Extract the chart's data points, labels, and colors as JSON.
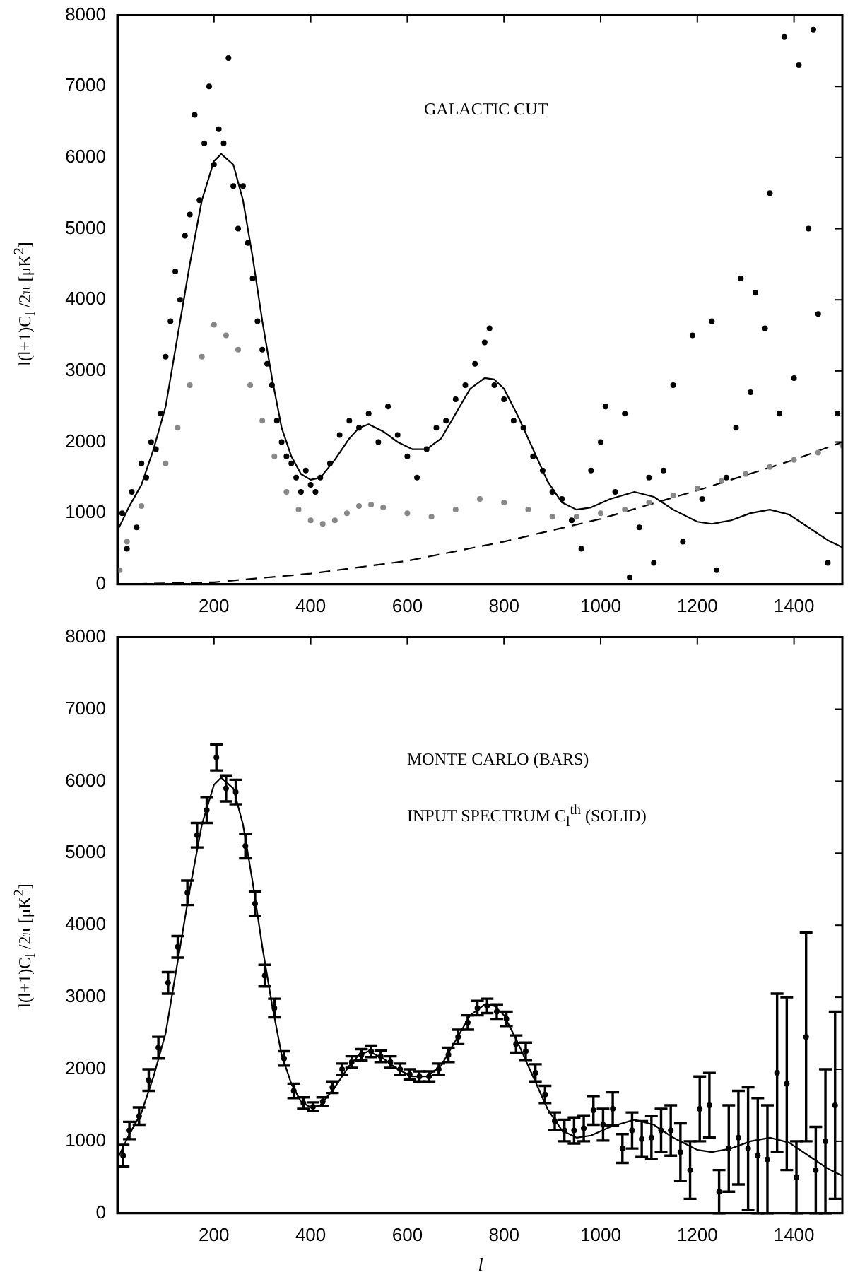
{
  "chart_data": [
    {
      "type": "scatter",
      "ylabel": "l(l+1)C$_{l}$ /2π [μK$^{2}$]",
      "annotations": [
        "GALACTIC CUT"
      ],
      "xlim": [
        0,
        1500
      ],
      "xticks": [
        200,
        400,
        600,
        800,
        1000,
        1200,
        1400
      ],
      "ylim": [
        0,
        8000
      ],
      "yticks": [
        0,
        1000,
        2000,
        3000,
        4000,
        5000,
        6000,
        7000,
        8000
      ],
      "grid": false,
      "legend": false,
      "series": [
        {
          "type": "scatter",
          "color": "#000000",
          "x": [
            10,
            20,
            30,
            40,
            50,
            60,
            70,
            80,
            90,
            100,
            110,
            120,
            130,
            140,
            150,
            160,
            170,
            180,
            190,
            200,
            210,
            220,
            230,
            240,
            250,
            260,
            270,
            280,
            290,
            300,
            310,
            320,
            330,
            340,
            350,
            360,
            370,
            380,
            390,
            400,
            410,
            420,
            440,
            460,
            480,
            500,
            520,
            540,
            560,
            580,
            600,
            620,
            640,
            660,
            680,
            700,
            720,
            740,
            760,
            770,
            780,
            800,
            820,
            840,
            860,
            880,
            900,
            920,
            940,
            960,
            980,
            1000,
            1010,
            1030,
            1050,
            1060,
            1080,
            1100,
            1110,
            1130,
            1150,
            1170,
            1190,
            1210,
            1230,
            1240,
            1260,
            1280,
            1290,
            1310,
            1320,
            1340,
            1350,
            1370,
            1380,
            1400,
            1410,
            1430,
            1440,
            1450,
            1470,
            1490
          ],
          "values": [
            1000,
            500,
            1300,
            800,
            1700,
            1500,
            2000,
            1900,
            2400,
            3200,
            3700,
            4400,
            4000,
            4900,
            5200,
            6600,
            5400,
            6200,
            7000,
            5900,
            6400,
            6200,
            7400,
            5600,
            5000,
            5600,
            4800,
            4300,
            3700,
            3300,
            3100,
            2800,
            2300,
            2000,
            1800,
            1700,
            1500,
            1300,
            1600,
            1400,
            1300,
            1500,
            1700,
            2100,
            2300,
            2200,
            2400,
            2000,
            2500,
            2100,
            1800,
            1500,
            1900,
            2200,
            2300,
            2600,
            2800,
            3100,
            3400,
            3600,
            2800,
            2600,
            2300,
            2200,
            1800,
            1600,
            1300,
            1200,
            900,
            500,
            1600,
            2000,
            2500,
            1300,
            2400,
            100,
            800,
            1500,
            300,
            1600,
            2800,
            600,
            3500,
            1200,
            3700,
            200,
            1500,
            2200,
            4300,
            2700,
            4100,
            3600,
            5500,
            2400,
            7700,
            2900,
            7300,
            5000,
            7800,
            3800,
            300,
            2400
          ]
        },
        {
          "type": "scatter",
          "color": "#888888",
          "x": [
            5,
            20,
            50,
            100,
            125,
            150,
            175,
            200,
            225,
            250,
            275,
            300,
            325,
            350,
            375,
            400,
            425,
            450,
            475,
            500,
            525,
            550,
            600,
            650,
            700,
            750,
            800,
            850,
            900,
            950,
            1000,
            1050,
            1100,
            1150,
            1200,
            1250,
            1300,
            1350,
            1400,
            1450,
            1500
          ],
          "values": [
            200,
            600,
            1100,
            1700,
            2200,
            2800,
            3200,
            3650,
            3500,
            3300,
            2800,
            2300,
            1800,
            1300,
            1050,
            900,
            850,
            900,
            1000,
            1100,
            1120,
            1080,
            1000,
            950,
            1050,
            1200,
            1150,
            1050,
            950,
            950,
            1000,
            1050,
            1150,
            1250,
            1350,
            1450,
            1550,
            1650,
            1750,
            1850,
            1950
          ]
        },
        {
          "type": "line",
          "color": "#000000",
          "line_style": "solid",
          "x": [
            0,
            25,
            50,
            75,
            100,
            125,
            150,
            175,
            200,
            215,
            240,
            260,
            280,
            300,
            320,
            340,
            360,
            380,
            400,
            420,
            450,
            480,
            500,
            520,
            550,
            580,
            610,
            640,
            670,
            700,
            730,
            760,
            780,
            800,
            830,
            860,
            890,
            920,
            950,
            980,
            1020,
            1070,
            1110,
            1150,
            1200,
            1230,
            1270,
            1310,
            1350,
            1390,
            1430,
            1470,
            1500
          ],
          "values": [
            750,
            1100,
            1400,
            1900,
            2500,
            3500,
            4500,
            5400,
            5950,
            6050,
            5900,
            5400,
            4600,
            3700,
            2900,
            2200,
            1800,
            1550,
            1470,
            1500,
            1750,
            2050,
            2200,
            2250,
            2150,
            2000,
            1900,
            1900,
            2050,
            2400,
            2750,
            2900,
            2880,
            2750,
            2350,
            1900,
            1450,
            1150,
            1050,
            1080,
            1200,
            1300,
            1230,
            1050,
            880,
            850,
            900,
            1000,
            1050,
            980,
            800,
            620,
            520
          ]
        },
        {
          "type": "line",
          "color": "#000000",
          "line_style": "dashed",
          "x": [
            0,
            200,
            400,
            600,
            800,
            1000,
            1200,
            1400,
            1500
          ],
          "values": [
            0,
            30,
            150,
            330,
            600,
            920,
            1320,
            1750,
            2000
          ]
        }
      ]
    },
    {
      "type": "scatter",
      "ylabel": "l(l+1)C$_{l}$ /2π [μK$^{2}$]",
      "xlabel": "l",
      "annotations": [
        "MONTE CARLO (BARS)",
        "INPUT SPECTRUM C$_{l}$$^{th}$ (SOLID)"
      ],
      "xlim": [
        0,
        1500
      ],
      "xticks": [
        200,
        400,
        600,
        800,
        1000,
        1200,
        1400
      ],
      "ylim": [
        0,
        8000
      ],
      "yticks": [
        0,
        1000,
        2000,
        3000,
        4000,
        5000,
        6000,
        7000,
        8000
      ],
      "grid": false,
      "legend": false,
      "series": [
        {
          "type": "line",
          "color": "#000000",
          "line_style": "solid",
          "x": [
            0,
            25,
            50,
            75,
            100,
            125,
            150,
            175,
            200,
            215,
            240,
            260,
            280,
            300,
            320,
            340,
            360,
            380,
            400,
            420,
            450,
            480,
            500,
            520,
            550,
            580,
            610,
            640,
            670,
            700,
            730,
            760,
            780,
            800,
            830,
            860,
            890,
            920,
            950,
            980,
            1020,
            1070,
            1110,
            1150,
            1200,
            1230,
            1270,
            1310,
            1350,
            1390,
            1430,
            1470,
            1500
          ],
          "values": [
            750,
            1100,
            1400,
            1900,
            2500,
            3500,
            4500,
            5400,
            5950,
            6050,
            5900,
            5400,
            4600,
            3700,
            2900,
            2200,
            1800,
            1550,
            1470,
            1500,
            1750,
            2050,
            2200,
            2250,
            2150,
            2000,
            1900,
            1900,
            2050,
            2400,
            2750,
            2900,
            2880,
            2750,
            2350,
            1900,
            1450,
            1150,
            1050,
            1080,
            1200,
            1300,
            1230,
            1050,
            880,
            850,
            900,
            1000,
            1050,
            980,
            800,
            620,
            520
          ]
        },
        {
          "type": "scatter",
          "color": "#000000",
          "x": [
            12,
            25,
            45,
            65,
            85,
            105,
            125,
            145,
            165,
            185,
            205,
            225,
            245,
            265,
            285,
            305,
            325,
            345,
            365,
            385,
            405,
            425,
            445,
            465,
            485,
            505,
            525,
            545,
            565,
            585,
            605,
            625,
            645,
            665,
            685,
            705,
            725,
            745,
            765,
            785,
            805,
            825,
            845,
            865,
            885,
            905,
            925,
            945,
            965,
            985,
            1005,
            1025,
            1045,
            1065,
            1085,
            1105,
            1125,
            1145,
            1165,
            1185,
            1205,
            1225,
            1245,
            1265,
            1285,
            1305,
            1325,
            1345,
            1365,
            1385,
            1405,
            1425,
            1445,
            1465,
            1485
          ],
          "values": [
            800,
            1150,
            1350,
            1850,
            2300,
            3200,
            3700,
            4450,
            5250,
            5600,
            6330,
            5900,
            5850,
            5100,
            4300,
            3300,
            2850,
            2150,
            1700,
            1530,
            1480,
            1550,
            1750,
            2000,
            2100,
            2200,
            2250,
            2180,
            2100,
            2000,
            1930,
            1900,
            1900,
            2000,
            2200,
            2450,
            2650,
            2850,
            2880,
            2800,
            2700,
            2350,
            2250,
            1950,
            1650,
            1280,
            1150,
            1150,
            1180,
            1430,
            1230,
            1450,
            900,
            1150,
            1030,
            1050,
            1150,
            1150,
            850,
            600,
            1450,
            1500,
            300,
            900,
            1050,
            900,
            800,
            750,
            1950,
            1800,
            500,
            2450,
            600,
            1000,
            1500
          ],
          "errors": [
            150,
            120,
            120,
            150,
            150,
            150,
            150,
            170,
            170,
            180,
            180,
            180,
            170,
            170,
            170,
            150,
            130,
            100,
            100,
            80,
            60,
            60,
            80,
            80,
            80,
            80,
            80,
            80,
            80,
            80,
            70,
            70,
            70,
            80,
            100,
            100,
            100,
            100,
            100,
            100,
            100,
            120,
            120,
            120,
            120,
            120,
            150,
            180,
            180,
            200,
            220,
            230,
            200,
            250,
            250,
            300,
            300,
            350,
            400,
            400,
            450,
            450,
            300,
            600,
            650,
            850,
            800,
            750,
            1100,
            1200,
            500,
            1450,
            600,
            1000,
            1300
          ]
        }
      ]
    }
  ]
}
